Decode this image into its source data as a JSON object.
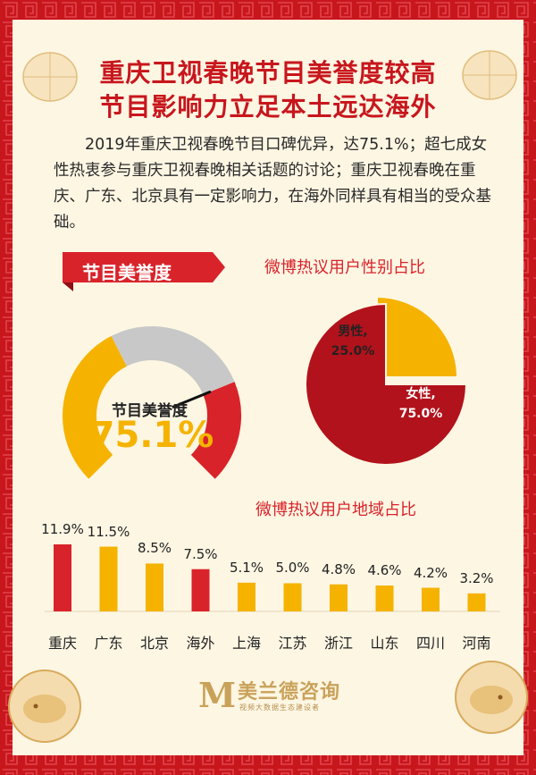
{
  "title_line1": "重庆卫视春晚节目美誉度较高",
  "title_line2": "节目影响力立足本土远达海外",
  "intro": "2019年重庆卫视春晚节目口碑优异，达75.1%；超七成女性热衷参与重庆卫视春晚相关话题的讨论；重庆卫视春晚在重庆、广东、北京具有一定影响力，在海外同样具有相当的受众基础。",
  "gauge": {
    "ribbon_label": "节目美誉度",
    "center_label": "节目美誉度",
    "value_text": "75.1%",
    "value": 75.1
  },
  "colors": {
    "red": "#d9232a",
    "yellow": "#f5b300",
    "gray": "#c8c8c8",
    "dark_red": "#b2121b"
  },
  "chart_data": [
    {
      "type": "pie",
      "title": "微博热议用户性别占比",
      "slices": [
        {
          "name": "男性,",
          "value": 25.0,
          "label": "25.0%"
        },
        {
          "name": "女性,",
          "value": 75.0,
          "label": "75.0%"
        }
      ]
    },
    {
      "type": "bar",
      "title": "微博热议用户地域占比",
      "categories": [
        "重庆",
        "广东",
        "北京",
        "海外",
        "上海",
        "江苏",
        "浙江",
        "山东",
        "四川",
        "河南"
      ],
      "values": [
        11.9,
        11.5,
        8.5,
        7.5,
        5.1,
        5.0,
        4.8,
        4.6,
        4.2,
        3.2
      ],
      "labels": [
        "11.9%",
        "11.5%",
        "8.5%",
        "7.5%",
        "5.1%",
        "5.0%",
        "4.8%",
        "4.6%",
        "4.2%",
        "3.2%"
      ],
      "highlight": [
        true,
        false,
        false,
        true,
        false,
        false,
        false,
        false,
        false,
        false
      ]
    }
  ],
  "footer": {
    "logo_letter": "M",
    "brand": "美兰德咨询",
    "tagline": "视频大数据生态建设者"
  }
}
